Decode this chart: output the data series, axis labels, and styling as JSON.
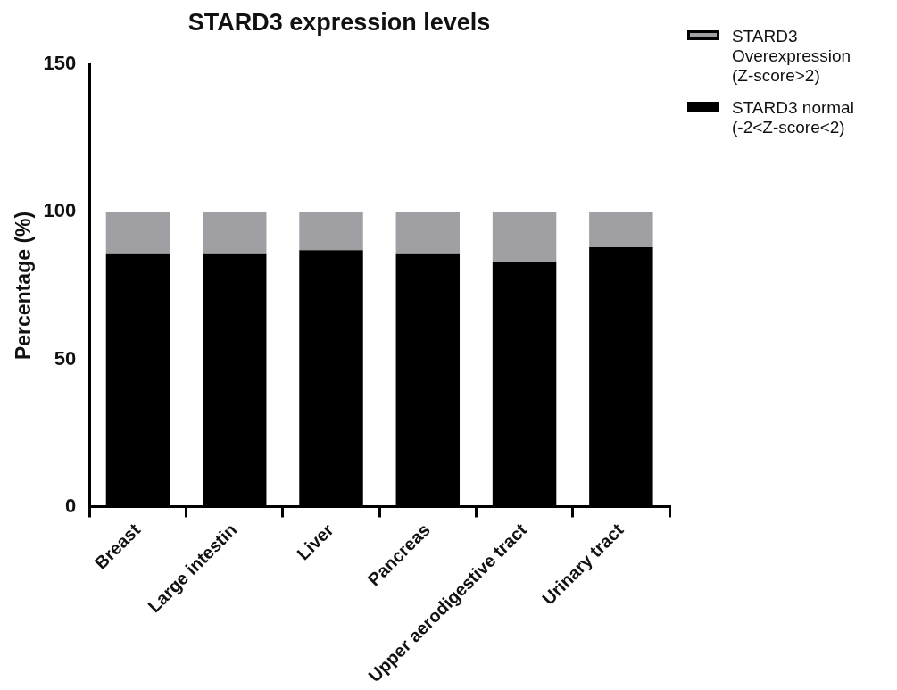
{
  "chart_data": {
    "type": "bar",
    "title": "STARD3 expression levels",
    "ylabel": "Percentage (%)",
    "stacked": true,
    "categories": [
      "Breast",
      "Large intestin",
      "Liver",
      "Pancreas",
      "Upper aerodigestive tract",
      "Urinary tract"
    ],
    "series": [
      {
        "name": "STARD3 normal (-2<Z-score<2)",
        "color": "#000000",
        "values": [
          86,
          86,
          87,
          86,
          83,
          88
        ]
      },
      {
        "name": "STARD3 Overexpression (Z-score>2)",
        "color": "#a09fa4",
        "values": [
          14,
          14,
          13,
          14,
          17,
          12
        ]
      }
    ],
    "ylim": [
      0,
      150
    ],
    "yticks": [
      0,
      50,
      100,
      150
    ],
    "grid": false,
    "legend": "top right"
  }
}
